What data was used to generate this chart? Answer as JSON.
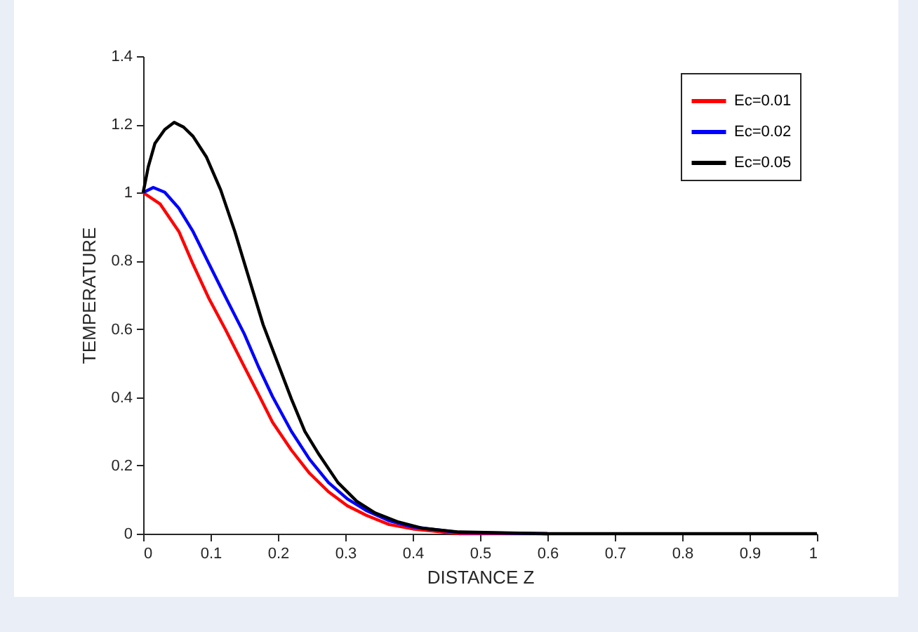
{
  "chart_data": {
    "type": "line",
    "xlabel": "DISTANCE Z",
    "ylabel": "TEMPERATURE",
    "xlim": [
      0,
      1
    ],
    "ylim": [
      0,
      1.4
    ],
    "xticks": [
      0,
      0.1,
      0.2,
      0.3,
      0.4,
      0.5,
      0.6,
      0.7,
      0.8,
      0.9,
      1
    ],
    "yticks": [
      0,
      0.2,
      0.4,
      0.6,
      0.8,
      1,
      1.2,
      1.4
    ],
    "grid": false,
    "legend": "top right",
    "marker": "none",
    "line_style": "solid",
    "series": [
      {
        "name": "Ec=0.01",
        "color": "#ff0000",
        "x": [
          0,
          0.025,
          0.053,
          0.074,
          0.098,
          0.122,
          0.15,
          0.171,
          0.192,
          0.22,
          0.247,
          0.275,
          0.303,
          0.331,
          0.365,
          0.4,
          0.47,
          0.6
        ],
        "values": [
          1.0,
          0.967,
          0.886,
          0.79,
          0.688,
          0.599,
          0.49,
          0.409,
          0.327,
          0.245,
          0.177,
          0.123,
          0.082,
          0.054,
          0.027,
          0.014,
          0.0,
          0
        ]
      },
      {
        "name": "Ec=0.02",
        "color": "#0000ff",
        "x": [
          0,
          0.015,
          0.032,
          0.053,
          0.074,
          0.098,
          0.122,
          0.15,
          0.171,
          0.192,
          0.22,
          0.247,
          0.275,
          0.303,
          0.331,
          0.365,
          0.4,
          0.47,
          0.6
        ],
        "values": [
          1.0,
          1.015,
          1.001,
          0.954,
          0.886,
          0.79,
          0.695,
          0.586,
          0.49,
          0.402,
          0.3,
          0.218,
          0.15,
          0.102,
          0.068,
          0.038,
          0.02,
          0.003,
          0
        ]
      },
      {
        "name": "Ec=0.05",
        "color": "#000000",
        "x": [
          0,
          0.0076,
          0.0174,
          0.032,
          0.046,
          0.06,
          0.074,
          0.094,
          0.115,
          0.136,
          0.157,
          0.178,
          0.199,
          0.22,
          0.24,
          0.261,
          0.289,
          0.317,
          0.344,
          0.379,
          0.414,
          0.469,
          0.6,
          0.8,
          1
        ],
        "values": [
          1.0,
          1.076,
          1.144,
          1.185,
          1.206,
          1.192,
          1.165,
          1.104,
          1.008,
          0.886,
          0.749,
          0.613,
          0.504,
          0.395,
          0.3,
          0.232,
          0.15,
          0.095,
          0.061,
          0.034,
          0.016,
          0.005,
          0,
          0,
          0
        ]
      }
    ]
  }
}
